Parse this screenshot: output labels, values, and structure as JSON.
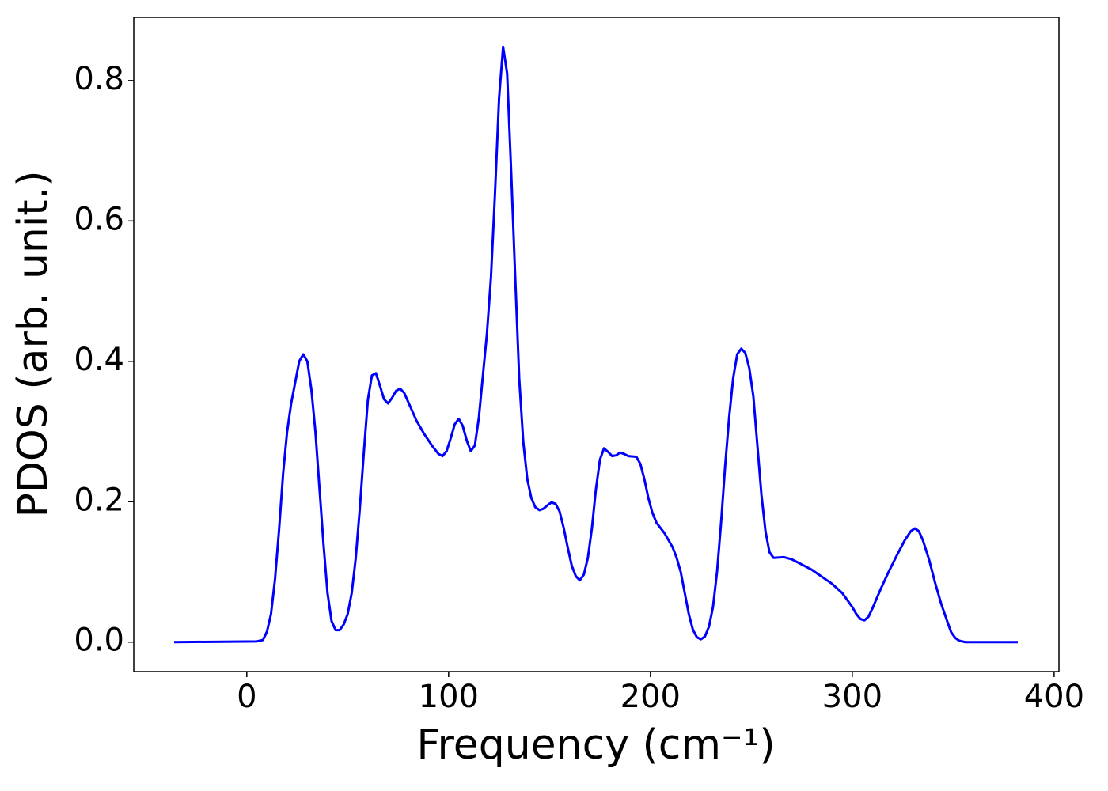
{
  "chart_data": {
    "type": "line",
    "x_label": "Frequency (cm⁻¹)",
    "y_label": "PDOS (arb. unit.)",
    "xlim": [
      -56,
      402.4
    ],
    "ylim": [
      -0.042,
      0.89
    ],
    "xticks": [
      0,
      100,
      200,
      300,
      400
    ],
    "yticks": [
      {
        "value": 0,
        "label": "0.0"
      },
      0.2,
      0.4,
      0.6,
      0.8
    ],
    "grid": false,
    "x": [
      -36,
      5,
      8,
      10,
      12,
      14,
      16,
      18,
      20,
      22,
      24,
      26,
      28,
      30,
      32,
      34,
      36,
      38,
      40,
      42,
      44,
      46,
      48,
      50,
      52,
      54,
      56,
      58,
      60,
      62,
      64,
      66,
      68,
      70,
      72,
      74,
      76,
      78,
      80,
      84,
      88,
      92,
      95,
      97,
      99,
      101,
      103,
      105,
      107,
      109,
      111,
      113,
      115,
      117,
      119,
      121,
      123,
      125,
      127,
      129,
      131,
      133,
      135,
      137,
      139,
      141,
      143,
      145,
      147,
      149,
      151,
      153,
      155,
      157,
      159,
      161,
      163,
      165,
      167,
      169,
      171,
      173,
      175,
      177,
      179,
      181,
      183,
      185,
      187,
      189,
      193,
      195,
      197,
      199,
      201,
      203,
      207,
      211,
      213,
      215,
      217,
      219,
      221,
      223,
      225,
      227,
      229,
      231,
      233,
      235,
      237,
      239,
      241,
      243,
      245,
      247,
      249,
      251,
      253,
      255,
      257,
      259,
      261,
      266,
      270,
      280,
      290,
      295,
      300,
      302,
      304,
      306,
      308,
      310,
      314,
      318,
      322,
      326,
      329,
      331,
      333,
      335,
      338,
      341,
      344,
      347,
      349,
      351,
      353,
      356,
      382
    ],
    "series": [
      {
        "name": "PDOS",
        "color": "#0000ff",
        "values": [
          0,
          0.001,
          0.003,
          0.015,
          0.04,
          0.09,
          0.16,
          0.24,
          0.3,
          0.34,
          0.37,
          0.4,
          0.41,
          0.4,
          0.36,
          0.3,
          0.22,
          0.14,
          0.07,
          0.03,
          0.017,
          0.017,
          0.025,
          0.04,
          0.07,
          0.12,
          0.19,
          0.27,
          0.345,
          0.38,
          0.383,
          0.365,
          0.346,
          0.34,
          0.348,
          0.358,
          0.361,
          0.355,
          0.342,
          0.316,
          0.296,
          0.279,
          0.268,
          0.265,
          0.272,
          0.29,
          0.31,
          0.318,
          0.308,
          0.287,
          0.272,
          0.28,
          0.32,
          0.38,
          0.44,
          0.52,
          0.64,
          0.775,
          0.848,
          0.81,
          0.67,
          0.52,
          0.375,
          0.285,
          0.232,
          0.205,
          0.192,
          0.188,
          0.19,
          0.195,
          0.199,
          0.197,
          0.186,
          0.163,
          0.135,
          0.109,
          0.094,
          0.088,
          0.096,
          0.12,
          0.162,
          0.218,
          0.26,
          0.276,
          0.271,
          0.265,
          0.266,
          0.27,
          0.268,
          0.265,
          0.264,
          0.254,
          0.232,
          0.205,
          0.184,
          0.17,
          0.155,
          0.135,
          0.12,
          0.1,
          0.07,
          0.04,
          0.018,
          0.007,
          0.004,
          0.008,
          0.022,
          0.05,
          0.1,
          0.17,
          0.25,
          0.32,
          0.376,
          0.41,
          0.418,
          0.412,
          0.39,
          0.35,
          0.28,
          0.21,
          0.158,
          0.128,
          0.12,
          0.121,
          0.118,
          0.103,
          0.083,
          0.07,
          0.05,
          0.04,
          0.033,
          0.031,
          0.036,
          0.048,
          0.075,
          0.1,
          0.123,
          0.145,
          0.158,
          0.162,
          0.158,
          0.145,
          0.118,
          0.085,
          0.055,
          0.03,
          0.014,
          0.006,
          0.002,
          0,
          0
        ]
      }
    ]
  }
}
